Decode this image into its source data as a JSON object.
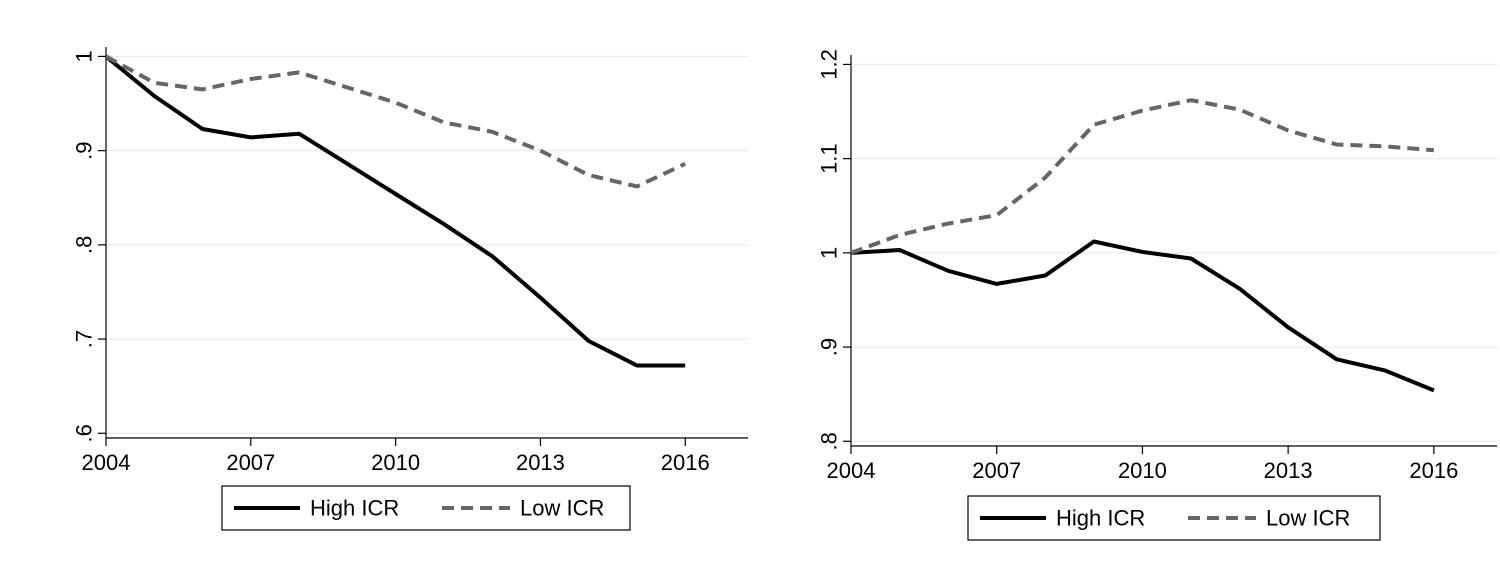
{
  "chart_data": [
    {
      "type": "line",
      "title": "",
      "xlabel": "",
      "ylabel": "",
      "x": [
        2004,
        2005,
        2006,
        2007,
        2008,
        2009,
        2010,
        2011,
        2012,
        2013,
        2014,
        2015,
        2016
      ],
      "x_ticks": [
        2004,
        2007,
        2010,
        2013,
        2016
      ],
      "x_tick_labels": [
        "2004",
        "2007",
        "2010",
        "2013",
        "2016"
      ],
      "xlim": [
        2004,
        2017.3
      ],
      "y_ticks": [
        0.6,
        0.7,
        0.8,
        0.9,
        1.0
      ],
      "y_tick_labels": [
        ".6",
        ".7",
        ".8",
        ".9",
        "1"
      ],
      "ylim": [
        0.595,
        1.01
      ],
      "grid": "horizontal",
      "legend": "bottom",
      "series": [
        {
          "name": "High ICR",
          "style": "solid",
          "color": "#000000",
          "values": [
            1.0,
            0.958,
            0.923,
            0.914,
            0.918,
            0.886,
            0.854,
            0.822,
            0.788,
            0.744,
            0.698,
            0.672,
            0.672
          ]
        },
        {
          "name": "Low ICR",
          "style": "dashed",
          "color": "#666666",
          "values": [
            1.0,
            0.972,
            0.965,
            0.976,
            0.983,
            0.967,
            0.951,
            0.93,
            0.92,
            0.9,
            0.874,
            0.862,
            0.886
          ]
        }
      ]
    },
    {
      "type": "line",
      "title": "",
      "xlabel": "",
      "ylabel": "",
      "x": [
        2004,
        2005,
        2006,
        2007,
        2008,
        2009,
        2010,
        2011,
        2012,
        2013,
        2014,
        2015,
        2016
      ],
      "x_ticks": [
        2004,
        2007,
        2010,
        2013,
        2016
      ],
      "x_tick_labels": [
        "2004",
        "2007",
        "2010",
        "2013",
        "2016"
      ],
      "xlim": [
        2004,
        2017.3
      ],
      "y_ticks": [
        0.8,
        0.9,
        1.0,
        1.1,
        1.2
      ],
      "y_tick_labels": [
        ".8",
        ".9",
        "1",
        "1.1",
        "1.2"
      ],
      "ylim": [
        0.795,
        1.21
      ],
      "grid": "horizontal",
      "legend": "bottom",
      "series": [
        {
          "name": "High ICR",
          "style": "solid",
          "color": "#000000",
          "values": [
            1.0,
            1.003,
            0.981,
            0.967,
            0.976,
            1.012,
            1.001,
            0.994,
            0.962,
            0.921,
            0.887,
            0.875,
            0.854
          ]
        },
        {
          "name": "Low ICR",
          "style": "dashed",
          "color": "#666666",
          "values": [
            1.0,
            1.019,
            1.031,
            1.04,
            1.08,
            1.136,
            1.151,
            1.162,
            1.152,
            1.13,
            1.115,
            1.113,
            1.109
          ]
        }
      ]
    }
  ]
}
